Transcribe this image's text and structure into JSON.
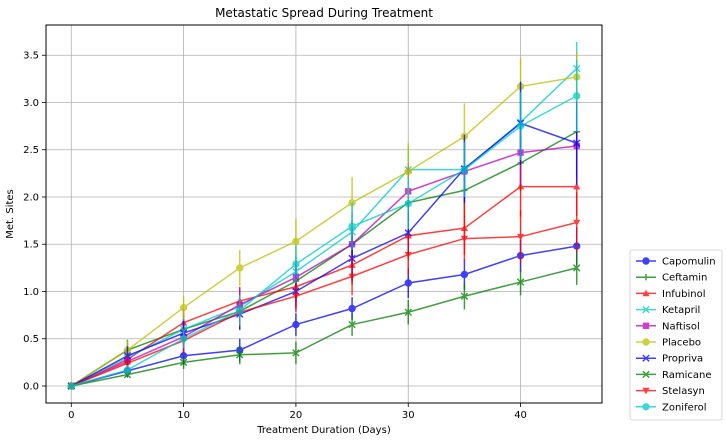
{
  "chart_data": {
    "type": "line",
    "title": "Metastatic Spread During Treatment",
    "xlabel": "Treatment Duration (Days)",
    "ylabel": "Met. Sites",
    "xlim": [
      -2.25,
      47.25
    ],
    "ylim": [
      -0.18,
      3.82
    ],
    "x_ticks": [
      0,
      10,
      20,
      30,
      40
    ],
    "y_ticks": [
      0.0,
      0.5,
      1.0,
      1.5,
      2.0,
      2.5,
      3.0,
      3.5
    ],
    "grid": true,
    "legend_position": "outside-right",
    "error_bars": true,
    "x": [
      0,
      5,
      10,
      15,
      20,
      25,
      30,
      35,
      40,
      45
    ],
    "series": [
      {
        "name": "Capomulin",
        "color": "#0000ff",
        "marker": "circle",
        "values": [
          0.0,
          0.16,
          0.32,
          0.38,
          0.65,
          0.82,
          1.09,
          1.18,
          1.38,
          1.48
        ],
        "errors": [
          0.0,
          0.07,
          0.1,
          0.12,
          0.12,
          0.12,
          0.16,
          0.16,
          0.17,
          0.2
        ]
      },
      {
        "name": "Ceftamin",
        "color": "#008000",
        "marker": "plus",
        "values": [
          0.0,
          0.38,
          0.6,
          0.79,
          1.11,
          1.5,
          1.94,
          2.07,
          2.36,
          2.69
        ],
        "errors": [
          0.0,
          0.11,
          0.14,
          0.2,
          0.22,
          0.25,
          0.27,
          0.28,
          0.3,
          0.33
        ]
      },
      {
        "name": "Infubinol",
        "color": "#ff0000",
        "marker": "triangle-up",
        "values": [
          0.0,
          0.28,
          0.67,
          0.9,
          1.05,
          1.28,
          1.59,
          1.67,
          2.11,
          2.11
        ],
        "errors": [
          0.0,
          0.09,
          0.14,
          0.15,
          0.2,
          0.21,
          0.26,
          0.28,
          0.32,
          0.31
        ]
      },
      {
        "name": "Ketapril",
        "color": "#00cccc",
        "marker": "x",
        "values": [
          0.0,
          0.3,
          0.6,
          0.84,
          1.21,
          1.63,
          2.29,
          2.29,
          2.79,
          3.36
        ],
        "errors": [
          0.0,
          0.1,
          0.12,
          0.15,
          0.18,
          0.21,
          0.24,
          0.28,
          0.34,
          0.28
        ]
      },
      {
        "name": "Naftisol",
        "color": "#bf00bf",
        "marker": "square",
        "values": [
          0.0,
          0.26,
          0.52,
          0.86,
          1.15,
          1.5,
          2.06,
          2.27,
          2.47,
          2.54
        ],
        "errors": [
          0.0,
          0.09,
          0.16,
          0.18,
          0.21,
          0.24,
          0.3,
          0.32,
          0.35,
          0.35
        ]
      },
      {
        "name": "Placebo",
        "color": "#bfbf00",
        "marker": "circle",
        "values": [
          0.0,
          0.38,
          0.83,
          1.25,
          1.53,
          1.94,
          2.27,
          2.64,
          3.17,
          3.27
        ],
        "errors": [
          0.0,
          0.1,
          0.12,
          0.19,
          0.24,
          0.27,
          0.3,
          0.35,
          0.3,
          0.27
        ]
      },
      {
        "name": "Propriva",
        "color": "#0000ff",
        "marker": "x",
        "values": [
          0.0,
          0.32,
          0.56,
          0.76,
          1.0,
          1.35,
          1.62,
          2.3,
          2.78,
          2.57
        ],
        "errors": [
          0.0,
          0.1,
          0.13,
          0.16,
          0.19,
          0.24,
          0.23,
          0.36,
          0.44,
          0.44
        ]
      },
      {
        "name": "Ramicane",
        "color": "#008000",
        "marker": "x",
        "values": [
          0.0,
          0.12,
          0.25,
          0.33,
          0.35,
          0.65,
          0.78,
          0.95,
          1.1,
          1.25
        ],
        "errors": [
          0.0,
          0.03,
          0.07,
          0.1,
          0.12,
          0.12,
          0.13,
          0.14,
          0.14,
          0.18
        ]
      },
      {
        "name": "Stelasyn",
        "color": "#ff0000",
        "marker": "triangle-down",
        "values": [
          0.0,
          0.24,
          0.48,
          0.78,
          0.95,
          1.16,
          1.39,
          1.56,
          1.58,
          1.73
        ],
        "errors": [
          0.0,
          0.1,
          0.13,
          0.16,
          0.17,
          0.2,
          0.22,
          0.24,
          0.28,
          0.32
        ]
      },
      {
        "name": "Zoniferol",
        "color": "#00cccc",
        "marker": "circle",
        "values": [
          0.0,
          0.17,
          0.5,
          0.8,
          1.29,
          1.69,
          1.93,
          2.29,
          2.75,
          3.07
        ],
        "errors": [
          0.0,
          0.05,
          0.1,
          0.16,
          0.2,
          0.25,
          0.27,
          0.29,
          0.36,
          0.38
        ]
      }
    ]
  }
}
